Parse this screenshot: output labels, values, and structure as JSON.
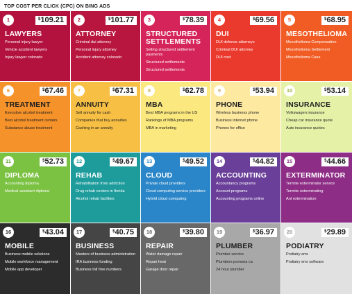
{
  "header": "TOP COST PER CLICK (CPC) ON BING ADS",
  "currency": "$",
  "tiles": [
    {
      "num": "1",
      "price": "109.21",
      "name": [
        "LAWYERS"
      ],
      "keywords": [
        "Personal injury lawyer",
        "Vehicle accident lawyers",
        "Injury lawyer colorado"
      ],
      "bg": "#b3123e",
      "fg": "#ffffff",
      "accent": "#b3123e"
    },
    {
      "num": "2",
      "price": "101.77",
      "name": [
        "ATTORNEY"
      ],
      "keywords": [
        "Criminal dui attorney",
        "Personal injury attorney",
        "Accident attorney colorado"
      ],
      "bg": "#b9163f",
      "fg": "#ffffff",
      "accent": "#b9163f"
    },
    {
      "num": "3",
      "price": "78.39",
      "name": [
        "STRUCTURED",
        "SETTLEMENTS"
      ],
      "keywords": [
        "Selling structured settlement payments",
        "Structured settlements",
        "Structured settlements"
      ],
      "bg": "#d4245a",
      "fg": "#ffffff",
      "accent": "#d4245a"
    },
    {
      "num": "4",
      "price": "69.56",
      "name": [
        "DUI"
      ],
      "keywords": [
        "DUI defense attorneys",
        "Criminal DUI attorney",
        "DUI cost"
      ],
      "bg": "#ea3a2e",
      "fg": "#ffffff",
      "accent": "#ea3a2e"
    },
    {
      "num": "5",
      "price": "68.95",
      "name": [
        "MESOTHELIOMA"
      ],
      "keywords": [
        "Mesothelioma Compensation",
        "Mesothelioma Settlement",
        "Mesothelioma Case"
      ],
      "bg": "#f15c24",
      "fg": "#ffffff",
      "accent": "#f15c24"
    },
    {
      "num": "6",
      "price": "67.46",
      "name": [
        "TREATMENT"
      ],
      "keywords": [
        "Executive alcohol treatment",
        "Best alcohol treatment centers",
        "Substance abuse treatment"
      ],
      "bg": "#f5922a",
      "fg": "#1e1e1e",
      "accent": "#f5922a"
    },
    {
      "num": "7",
      "price": "67.31",
      "name": [
        "ANNUITY"
      ],
      "keywords": [
        "Sell annuity for cash",
        "Companies that buy annuities",
        "Cashing in an annuity"
      ],
      "bg": "#f7c045",
      "fg": "#1e1e1e",
      "accent": "#f7c045"
    },
    {
      "num": "8",
      "price": "62.78",
      "name": [
        "MBA"
      ],
      "keywords": [
        "Best MBA programs in the US",
        "Rankings of MBA programs",
        "MBA in marketing"
      ],
      "bg": "#fbe87f",
      "fg": "#1e1e1e",
      "accent": "#cbb84f"
    },
    {
      "num": "9",
      "price": "53.94",
      "name": [
        "PHONE"
      ],
      "keywords": [
        "Wireless business phone",
        "Business internet phone",
        "Phones for office"
      ],
      "bg": "#fde9a0",
      "fg": "#1e1e1e",
      "accent": "#cdb970"
    },
    {
      "num": "10",
      "price": "53.14",
      "name": [
        "INSURANCE"
      ],
      "keywords": [
        "Volkswagen insurance",
        "Cheap car insurance quote",
        "Auto insurance quotes"
      ],
      "bg": "#e6f1a8",
      "fg": "#1e1e1e",
      "accent": "#9fb33a"
    },
    {
      "num": "11",
      "price": "52.73",
      "name": [
        "DIPLOMA"
      ],
      "keywords": [
        "Accounting diploma",
        "Medical assistant diploma"
      ],
      "bg": "#7bc142",
      "fg": "#ffffff",
      "accent": "#5a9e2a"
    },
    {
      "num": "12",
      "price": "49.67",
      "name": [
        "REHAB"
      ],
      "keywords": [
        "Rehabilitation from addiction",
        "Drug rehab centers in florida",
        "Alcohol rehab facilities"
      ],
      "bg": "#1e9c9c",
      "fg": "#ffffff",
      "accent": "#1e9c9c"
    },
    {
      "num": "13",
      "price": "49.52",
      "name": [
        "CLOUD"
      ],
      "keywords": [
        "Private cloud providers",
        "Cloud computing service providers",
        "Hybrid cloud computing"
      ],
      "bg": "#2a86c8",
      "fg": "#ffffff",
      "accent": "#2a86c8"
    },
    {
      "num": "14",
      "price": "44.82",
      "name": [
        "ACCOUNTING"
      ],
      "keywords": [
        "Accountancy programs",
        "Account programs",
        "Accounting programs online"
      ],
      "bg": "#6a3f99",
      "fg": "#ffffff",
      "accent": "#6a3f99"
    },
    {
      "num": "15",
      "price": "44.66",
      "name": [
        "EXTERMINATOR"
      ],
      "keywords": [
        "Termite exterminator service",
        "Termite exterminating",
        "Ant extermination"
      ],
      "bg": "#8e2d86",
      "fg": "#ffffff",
      "accent": "#8e2d86"
    },
    {
      "num": "16",
      "price": "43.04",
      "name": [
        "MOBILE"
      ],
      "keywords": [
        "Business mobile solutions",
        "Mobile workforce management",
        "Mobile app developer"
      ],
      "bg": "#2c2c2c",
      "fg": "#ffffff",
      "accent": "#2c2c2c"
    },
    {
      "num": "17",
      "price": "40.75",
      "name": [
        "BUSINESS"
      ],
      "keywords": [
        "Masters of business administration",
        "IRA business funding",
        "Business toll free numbers"
      ],
      "bg": "#454545",
      "fg": "#ffffff",
      "accent": "#454545"
    },
    {
      "num": "18",
      "price": "39.80",
      "name": [
        "REPAIR"
      ],
      "keywords": [
        "Water damage repair",
        "Repair heat",
        "Garage door repair"
      ],
      "bg": "#686868",
      "fg": "#ffffff",
      "accent": "#686868"
    },
    {
      "num": "19",
      "price": "36.97",
      "name": [
        "PLUMBER"
      ],
      "keywords": [
        "Plumber service",
        "Plumbers pomona ca",
        "24 hour plumber"
      ],
      "bg": "#a8a8a8",
      "fg": "#1e1e1e",
      "accent": "#7a7a7a"
    },
    {
      "num": "20",
      "price": "29.89",
      "name": [
        "PODIATRY"
      ],
      "keywords": [
        "Podiatry emr",
        "Podiatry emr software"
      ],
      "bg": "#e1e1e1",
      "fg": "#1e1e1e",
      "accent": "#9a9a9a"
    }
  ]
}
